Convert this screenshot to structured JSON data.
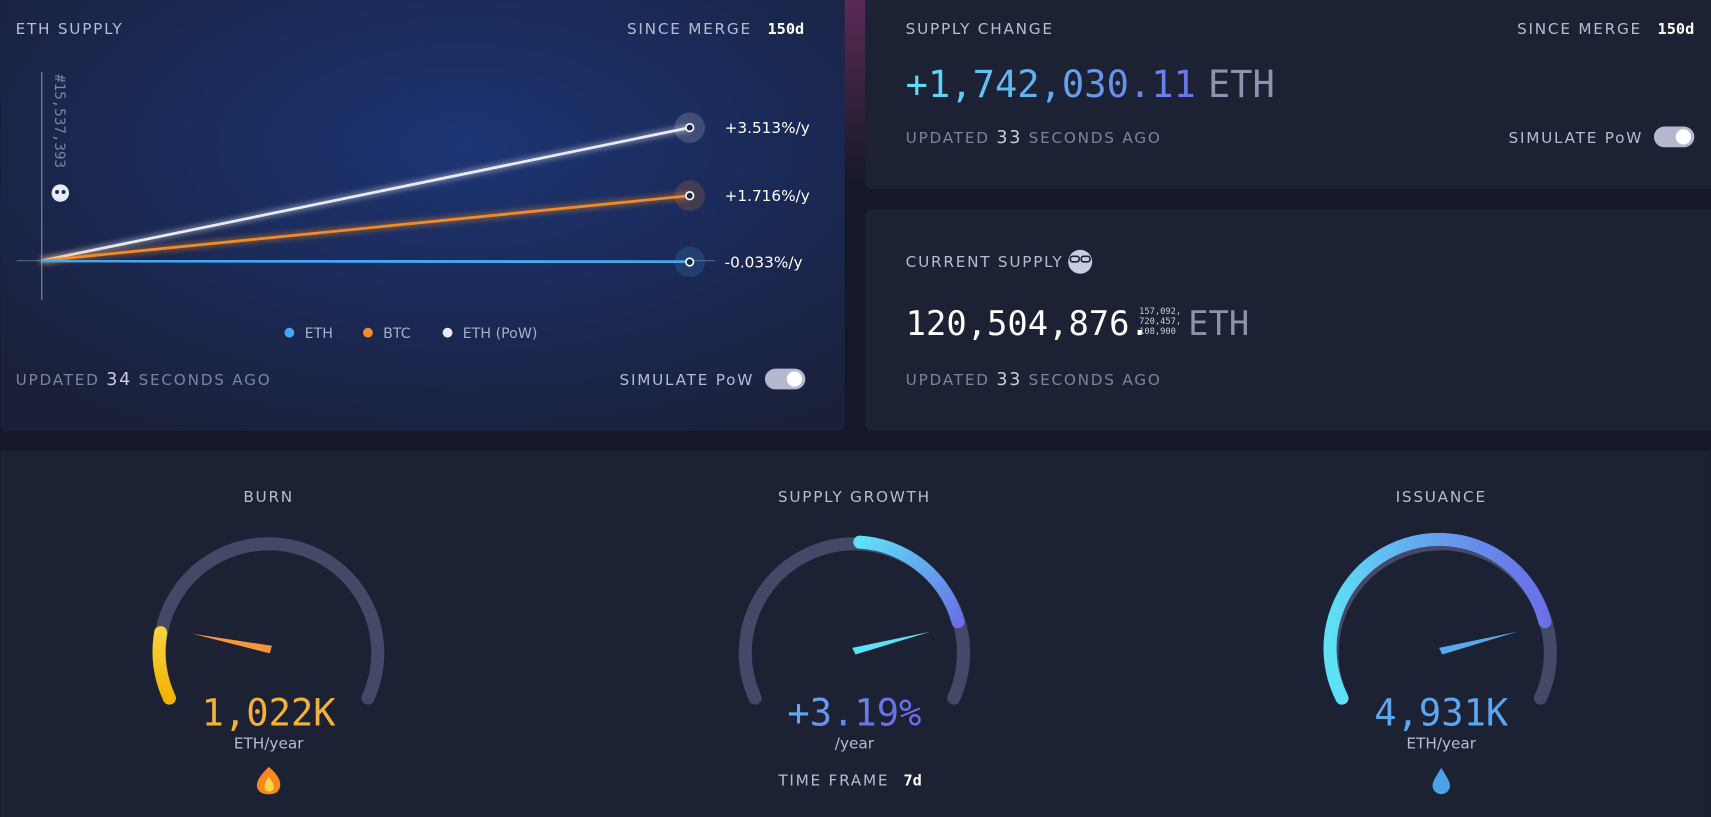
{
  "eth_supply": {
    "title": "ETH SUPPLY",
    "since_label": "SINCE MERGE",
    "since_value": "150d",
    "block": "#15,537,393",
    "series": [
      {
        "name": "ETH",
        "color": "#3fa9f5",
        "value": -0.033,
        "value_label": "-0.033%/y"
      },
      {
        "name": "BTC",
        "color": "#f28c28",
        "value": 1.716,
        "value_label": "+1.716%/y"
      },
      {
        "name": "ETH (PoW)",
        "color": "#e8eaf4",
        "value": 3.513,
        "value_label": "+3.513%/y"
      }
    ],
    "updated": {
      "prefix": "UPDATED",
      "value": "34",
      "suffix": "SECONDS AGO"
    },
    "toggle": "SIMULATE PoW"
  },
  "supply_change": {
    "title": "SUPPLY CHANGE",
    "since_label": "SINCE MERGE",
    "since_value": "150d",
    "amount": "+1,742,030.11",
    "unit": "ETH",
    "updated": {
      "prefix": "UPDATED",
      "value": "33",
      "suffix": "SECONDS AGO"
    },
    "toggle": "SIMULATE PoW"
  },
  "current_supply": {
    "title": "CURRENT SUPPLY",
    "integer": "120,504,876.",
    "fraction": [
      "157,092,",
      "720,457,",
      "108,900"
    ],
    "unit": "ETH",
    "updated": {
      "prefix": "UPDATED",
      "value": "33",
      "suffix": "SECONDS AGO"
    }
  },
  "gauges": [
    {
      "title": "BURN",
      "value": "1,022K",
      "unit": "ETH/year"
    },
    {
      "title": "SUPPLY GROWTH",
      "value": "+3.19%",
      "unit": "/year",
      "timeframe_label": "TIME FRAME",
      "timeframe_value": "7d"
    },
    {
      "title": "ISSUANCE",
      "value": "4,931K",
      "unit": "ETH/year"
    }
  ]
}
